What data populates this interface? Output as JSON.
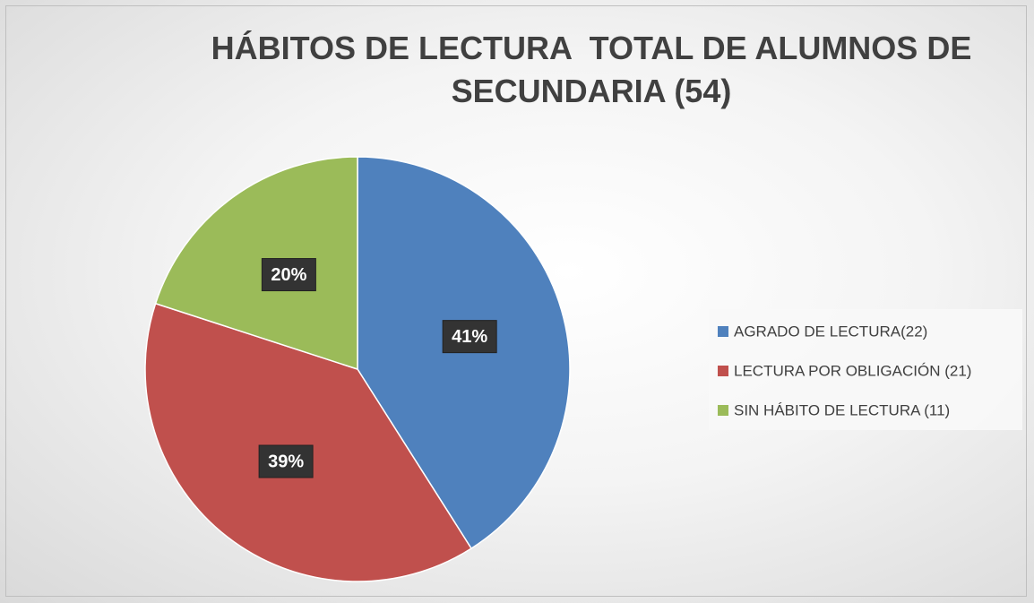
{
  "chart_data": {
    "type": "pie",
    "title": "HÁBITOS DE LECTURA  TOTAL DE ALUMNOS DE SECUNDARIA (54)",
    "categories": [
      "AGRADO DE LECTURA(22)",
      "LECTURA POR OBLIGACIÓN (21)",
      "SIN HÁBITO DE LECTURA (11)"
    ],
    "values": [
      41,
      39,
      20
    ],
    "value_labels": [
      "41%",
      "39%",
      "20%"
    ],
    "colors": [
      "#4f81bd",
      "#c0504d",
      "#9bbb59"
    ],
    "legend": "right"
  }
}
